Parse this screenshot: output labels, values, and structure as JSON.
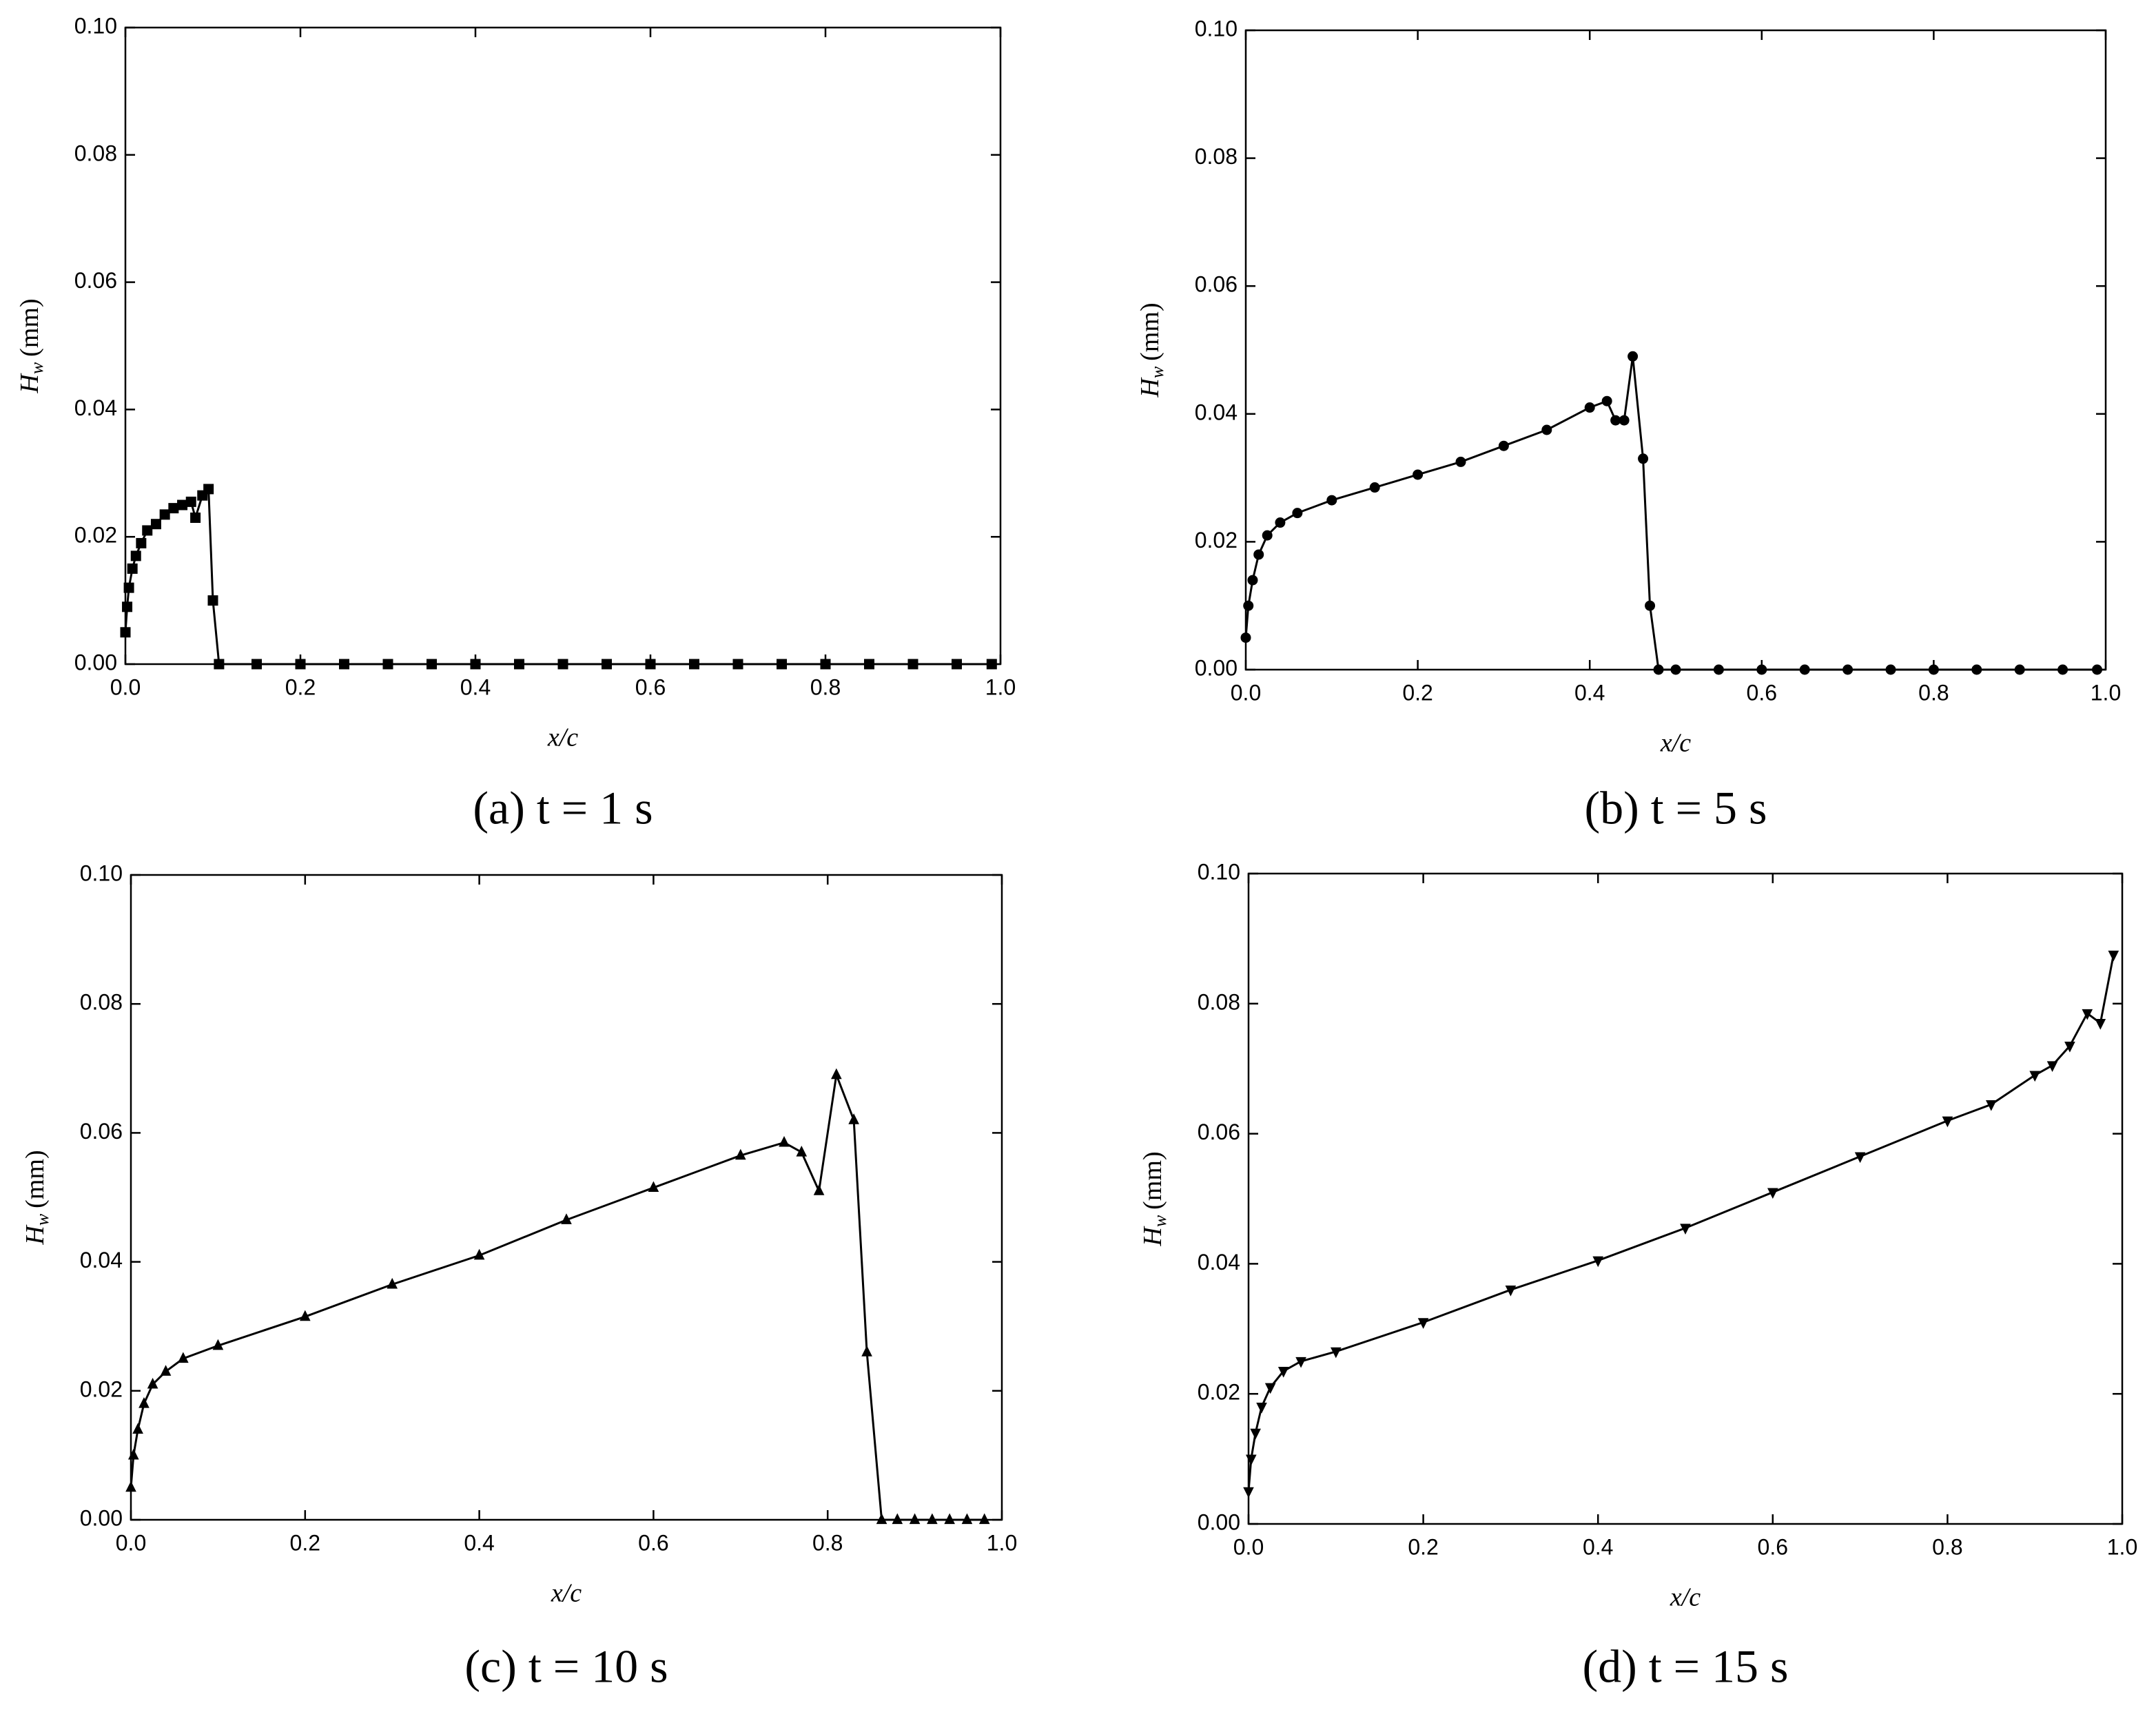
{
  "chart_data": [
    {
      "type": "line",
      "caption": "(a) t = 1 s",
      "xlabel": "x/c",
      "ylabel": {
        "symbol": "H",
        "subscript": "w",
        "unit": "(mm)"
      },
      "marker": "square",
      "color": "#000000",
      "x": [
        0,
        0.002,
        0.004,
        0.008,
        0.012,
        0.018,
        0.025,
        0.035,
        0.045,
        0.055,
        0.065,
        0.075,
        0.08,
        0.088,
        0.095,
        0.1,
        0.107,
        0.15,
        0.2,
        0.25,
        0.3,
        0.35,
        0.4,
        0.45,
        0.5,
        0.55,
        0.6,
        0.65,
        0.7,
        0.75,
        0.8,
        0.85,
        0.9,
        0.95,
        0.99
      ],
      "values": [
        0.005,
        0.009,
        0.012,
        0.015,
        0.017,
        0.019,
        0.021,
        0.022,
        0.0235,
        0.0245,
        0.025,
        0.0255,
        0.023,
        0.0265,
        0.0275,
        0.01,
        0,
        0,
        0,
        0,
        0,
        0,
        0,
        0,
        0,
        0,
        0,
        0,
        0,
        0,
        0,
        0,
        0,
        0,
        0
      ],
      "xlim": [
        0,
        1
      ],
      "ylim": [
        0,
        0.1
      ],
      "xticks": [
        {
          "value": 0,
          "label": "0.0"
        },
        {
          "value": 0.2,
          "label": "0.2"
        },
        {
          "value": 0.4,
          "label": "0.4"
        },
        {
          "value": 0.6,
          "label": "0.6"
        },
        {
          "value": 0.8,
          "label": "0.8"
        },
        {
          "value": 1,
          "label": "1.0"
        }
      ],
      "yticks": [
        {
          "value": 0,
          "label": "0.00"
        },
        {
          "value": 0.02,
          "label": "0.02"
        },
        {
          "value": 0.04,
          "label": "0.04"
        },
        {
          "value": 0.06,
          "label": "0.06"
        },
        {
          "value": 0.08,
          "label": "0.08"
        },
        {
          "value": 0.1,
          "label": "0.10"
        }
      ]
    },
    {
      "type": "line",
      "caption": "(b) t = 5 s",
      "xlabel": "x/c",
      "ylabel": {
        "symbol": "H",
        "subscript": "w",
        "unit": "(mm)"
      },
      "marker": "circle",
      "color": "#000000",
      "x": [
        0,
        0.003,
        0.008,
        0.015,
        0.025,
        0.04,
        0.06,
        0.1,
        0.15,
        0.2,
        0.25,
        0.3,
        0.35,
        0.4,
        0.42,
        0.43,
        0.44,
        0.45,
        0.462,
        0.47,
        0.48,
        0.5,
        0.55,
        0.6,
        0.65,
        0.7,
        0.75,
        0.8,
        0.85,
        0.9,
        0.95,
        0.99
      ],
      "values": [
        0.005,
        0.01,
        0.014,
        0.018,
        0.021,
        0.023,
        0.0245,
        0.0265,
        0.0285,
        0.0305,
        0.0325,
        0.035,
        0.0375,
        0.041,
        0.042,
        0.039,
        0.039,
        0.049,
        0.033,
        0.01,
        0,
        0,
        0,
        0,
        0,
        0,
        0,
        0,
        0,
        0,
        0,
        0
      ],
      "xlim": [
        0,
        1
      ],
      "ylim": [
        0,
        0.1
      ],
      "xticks": [
        {
          "value": 0,
          "label": "0.0"
        },
        {
          "value": 0.2,
          "label": "0.2"
        },
        {
          "value": 0.4,
          "label": "0.4"
        },
        {
          "value": 0.6,
          "label": "0.6"
        },
        {
          "value": 0.8,
          "label": "0.8"
        },
        {
          "value": 1,
          "label": "1.0"
        }
      ],
      "yticks": [
        {
          "value": 0,
          "label": "0.00"
        },
        {
          "value": 0.02,
          "label": "0.02"
        },
        {
          "value": 0.04,
          "label": "0.04"
        },
        {
          "value": 0.06,
          "label": "0.06"
        },
        {
          "value": 0.08,
          "label": "0.08"
        },
        {
          "value": 0.1,
          "label": "0.10"
        }
      ]
    },
    {
      "type": "line",
      "caption": "(c) t = 10 s",
      "xlabel": "x/c",
      "ylabel": {
        "symbol": "H",
        "subscript": "w",
        "unit": "(mm)"
      },
      "marker": "triangle-up",
      "color": "#000000",
      "x": [
        0,
        0.003,
        0.008,
        0.015,
        0.025,
        0.04,
        0.06,
        0.1,
        0.2,
        0.3,
        0.4,
        0.5,
        0.6,
        0.7,
        0.75,
        0.77,
        0.79,
        0.81,
        0.83,
        0.845,
        0.862,
        0.88,
        0.9,
        0.92,
        0.94,
        0.96,
        0.98
      ],
      "values": [
        0.005,
        0.01,
        0.014,
        0.018,
        0.021,
        0.023,
        0.025,
        0.027,
        0.0315,
        0.0365,
        0.041,
        0.0465,
        0.0515,
        0.0565,
        0.0585,
        0.057,
        0.051,
        0.069,
        0.062,
        0.026,
        0,
        0,
        0,
        0,
        0,
        0,
        0
      ],
      "xlim": [
        0,
        1
      ],
      "ylim": [
        0,
        0.1
      ],
      "xticks": [
        {
          "value": 0,
          "label": "0.0"
        },
        {
          "value": 0.2,
          "label": "0.2"
        },
        {
          "value": 0.4,
          "label": "0.4"
        },
        {
          "value": 0.6,
          "label": "0.6"
        },
        {
          "value": 0.8,
          "label": "0.8"
        },
        {
          "value": 1,
          "label": "1.0"
        }
      ],
      "yticks": [
        {
          "value": 0,
          "label": "0.00"
        },
        {
          "value": 0.02,
          "label": "0.02"
        },
        {
          "value": 0.04,
          "label": "0.04"
        },
        {
          "value": 0.06,
          "label": "0.06"
        },
        {
          "value": 0.08,
          "label": "0.08"
        },
        {
          "value": 0.1,
          "label": "0.10"
        }
      ]
    },
    {
      "type": "line",
      "caption": "(d) t = 15 s",
      "xlabel": "x/c",
      "ylabel": {
        "symbol": "H",
        "subscript": "w",
        "unit": "(mm)"
      },
      "marker": "triangle-down",
      "color": "#000000",
      "x": [
        0,
        0.003,
        0.008,
        0.015,
        0.025,
        0.04,
        0.06,
        0.1,
        0.2,
        0.3,
        0.4,
        0.5,
        0.6,
        0.7,
        0.8,
        0.85,
        0.9,
        0.92,
        0.94,
        0.96,
        0.975,
        0.99
      ],
      "values": [
        0.005,
        0.01,
        0.014,
        0.018,
        0.021,
        0.0235,
        0.025,
        0.0265,
        0.031,
        0.036,
        0.0405,
        0.0455,
        0.051,
        0.0565,
        0.062,
        0.0645,
        0.069,
        0.0705,
        0.0735,
        0.0785,
        0.077,
        0.0875
      ],
      "xlim": [
        0,
        1
      ],
      "ylim": [
        0,
        0.1
      ],
      "xticks": [
        {
          "value": 0,
          "label": "0.0"
        },
        {
          "value": 0.2,
          "label": "0.2"
        },
        {
          "value": 0.4,
          "label": "0.4"
        },
        {
          "value": 0.6,
          "label": "0.6"
        },
        {
          "value": 0.8,
          "label": "0.8"
        },
        {
          "value": 1,
          "label": "1.0"
        }
      ],
      "yticks": [
        {
          "value": 0,
          "label": "0.00"
        },
        {
          "value": 0.02,
          "label": "0.02"
        },
        {
          "value": 0.04,
          "label": "0.04"
        },
        {
          "value": 0.06,
          "label": "0.06"
        },
        {
          "value": 0.08,
          "label": "0.08"
        },
        {
          "value": 0.1,
          "label": "0.10"
        }
      ]
    }
  ]
}
